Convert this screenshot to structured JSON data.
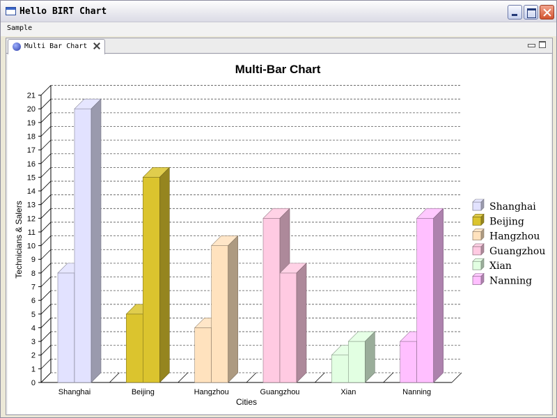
{
  "window": {
    "title": "Hello BIRT Chart"
  },
  "menu": {
    "items": [
      "Sample"
    ]
  },
  "tab": {
    "label": "Multi Bar Chart"
  },
  "icons": {
    "app": "window-icon",
    "tab": "chart-view-icon",
    "tab_close": "close-icon",
    "minimize": "minimize-icon",
    "maximize": "maximize-icon",
    "close": "close-icon"
  },
  "chart_data": {
    "type": "bar",
    "title": "Multi-Bar Chart",
    "xlabel": "Cities",
    "ylabel": "Technicians & Salers",
    "ylim": [
      0,
      21
    ],
    "yticks": [
      0,
      1,
      2,
      3,
      4,
      5,
      6,
      7,
      8,
      9,
      10,
      11,
      12,
      13,
      14,
      15,
      16,
      17,
      18,
      19,
      20,
      21
    ],
    "grid": true,
    "legend_position": "right",
    "categories": [
      "Shanghai",
      "Beijing",
      "Hangzhou",
      "Guangzhou",
      "Xian",
      "Nanning"
    ],
    "bars": [
      {
        "category": "Shanghai",
        "values": [
          8,
          20
        ],
        "color": "#E2E2FF"
      },
      {
        "category": "Beijing",
        "values": [
          5,
          15
        ],
        "color": "#DBC42E"
      },
      {
        "category": "Hangzhou",
        "values": [
          4,
          10
        ],
        "color": "#FFE2BE"
      },
      {
        "category": "Guangzhou",
        "values": [
          12,
          8
        ],
        "color": "#FFCAE2"
      },
      {
        "category": "Xian",
        "values": [
          2,
          3
        ],
        "color": "#E2FFE2"
      },
      {
        "category": "Nanning",
        "values": [
          3,
          12
        ],
        "color": "#FFBFFF"
      }
    ],
    "legend": [
      {
        "name": "Shanghai",
        "color": "#E2E2FF"
      },
      {
        "name": "Beijing",
        "color": "#DBC42E"
      },
      {
        "name": "Hangzhou",
        "color": "#FFE2BE"
      },
      {
        "name": "Guangzhou",
        "color": "#FFCAE2"
      },
      {
        "name": "Xian",
        "color": "#E2FFE2"
      },
      {
        "name": "Nanning",
        "color": "#FFBFFF"
      }
    ]
  }
}
